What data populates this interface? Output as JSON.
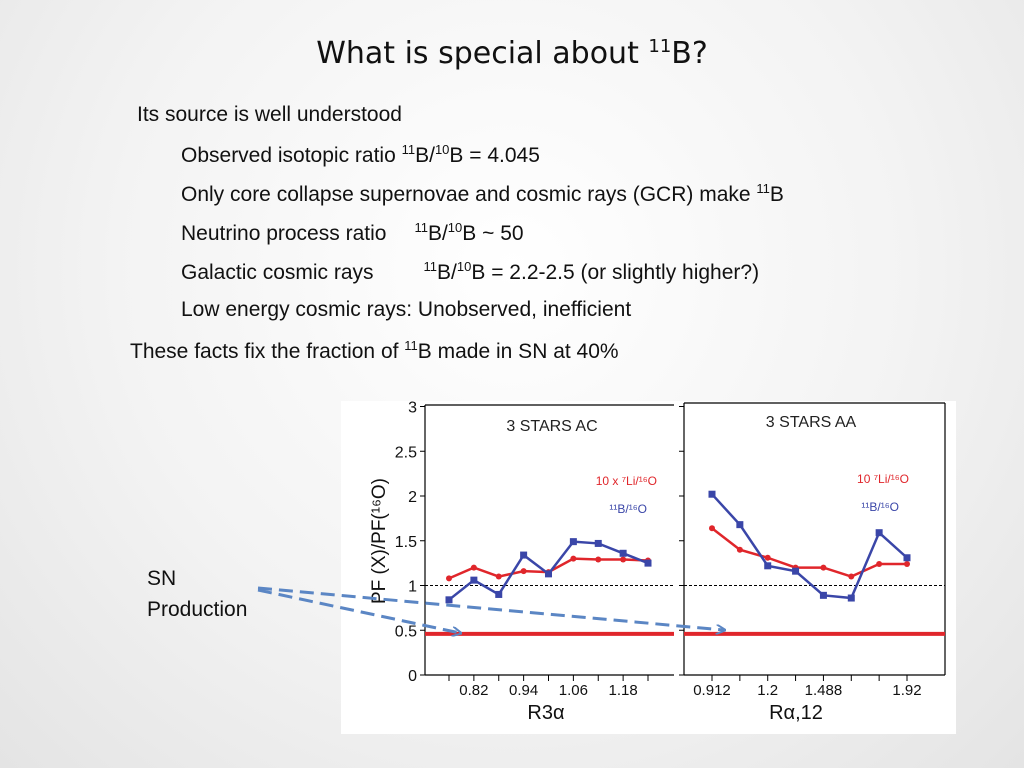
{
  "title": {
    "text": "What is special about ",
    "sup": "11",
    "tail": "B?"
  },
  "bullets": {
    "l1": "Its source is well understood",
    "l2": {
      "text": "Observed isotopic ratio  ",
      "sup1": "11",
      "mid": "B/",
      "sup2": "10",
      "tail": "B = 4.045"
    },
    "l3": {
      "text": "Only core collapse supernovae and cosmic rays (GCR) make ",
      "sup": "11",
      "tail": "B"
    },
    "l4": {
      "text": "Neutrino process ratio",
      "sup1": "11",
      "mid": "B/",
      "sup2": "10",
      "tail": "B ~ 50"
    },
    "l5": {
      "text": "Galactic cosmic rays",
      "sup1": "11",
      "mid": "B/",
      "sup2": "10",
      "tail": "B = 2.2-2.5 (or slightly higher?)"
    },
    "l6": "Low energy cosmic rays:  Unobserved, inefficient",
    "l7": {
      "text": "These facts fix the fraction of ",
      "sup": "11",
      "tail": "B made in SN at 40%"
    }
  },
  "sn_label": {
    "line1": "SN",
    "line2": "Production"
  },
  "colors": {
    "red": "#e0262b",
    "blue": "#3a46a8",
    "arrow": "#5b86c4"
  },
  "chart_data": [
    {
      "type": "line",
      "title": "3 STARS  AC",
      "ylabel": "PF (X)/PF(¹⁶O)",
      "xlabel": "R3α",
      "ylim": [
        0,
        3
      ],
      "yticks": [
        "0",
        "0.5",
        "1",
        "1.5",
        "2",
        "2.5",
        "3"
      ],
      "xticks": [
        "0.82",
        "0.94",
        "1.06",
        "1.18"
      ],
      "reference_lines": [
        1.0,
        0.46
      ],
      "x": [
        0.76,
        0.82,
        0.88,
        0.94,
        1.0,
        1.06,
        1.12,
        1.18,
        1.24
      ],
      "series": [
        {
          "name": "10 x ⁷Li/¹⁶O",
          "color": "red",
          "values": [
            1.08,
            1.2,
            1.1,
            1.16,
            1.15,
            1.3,
            1.29,
            1.29,
            1.28
          ]
        },
        {
          "name": "¹¹B/¹⁶O",
          "color": "blue",
          "values": [
            0.84,
            1.06,
            0.9,
            1.34,
            1.13,
            1.49,
            1.47,
            1.36,
            1.25
          ]
        }
      ]
    },
    {
      "type": "line",
      "title": "3 STARS  AA",
      "xlabel": "Rα,12",
      "ylim": [
        0,
        3
      ],
      "xticks": [
        "0.912",
        "1.2",
        "1.488",
        "1.92"
      ],
      "reference_lines": [
        1.0,
        0.46
      ],
      "x": [
        0.912,
        1.056,
        1.2,
        1.344,
        1.488,
        1.632,
        1.776,
        1.92
      ],
      "series": [
        {
          "name": "10 ⁷Li/¹⁶O",
          "color": "red",
          "values": [
            1.64,
            1.4,
            1.31,
            1.2,
            1.2,
            1.1,
            1.24,
            1.24
          ]
        },
        {
          "name": "¹¹B/¹⁶O",
          "color": "blue",
          "values": [
            2.02,
            1.68,
            1.22,
            1.16,
            0.89,
            0.86,
            1.59,
            1.31
          ]
        }
      ]
    }
  ]
}
